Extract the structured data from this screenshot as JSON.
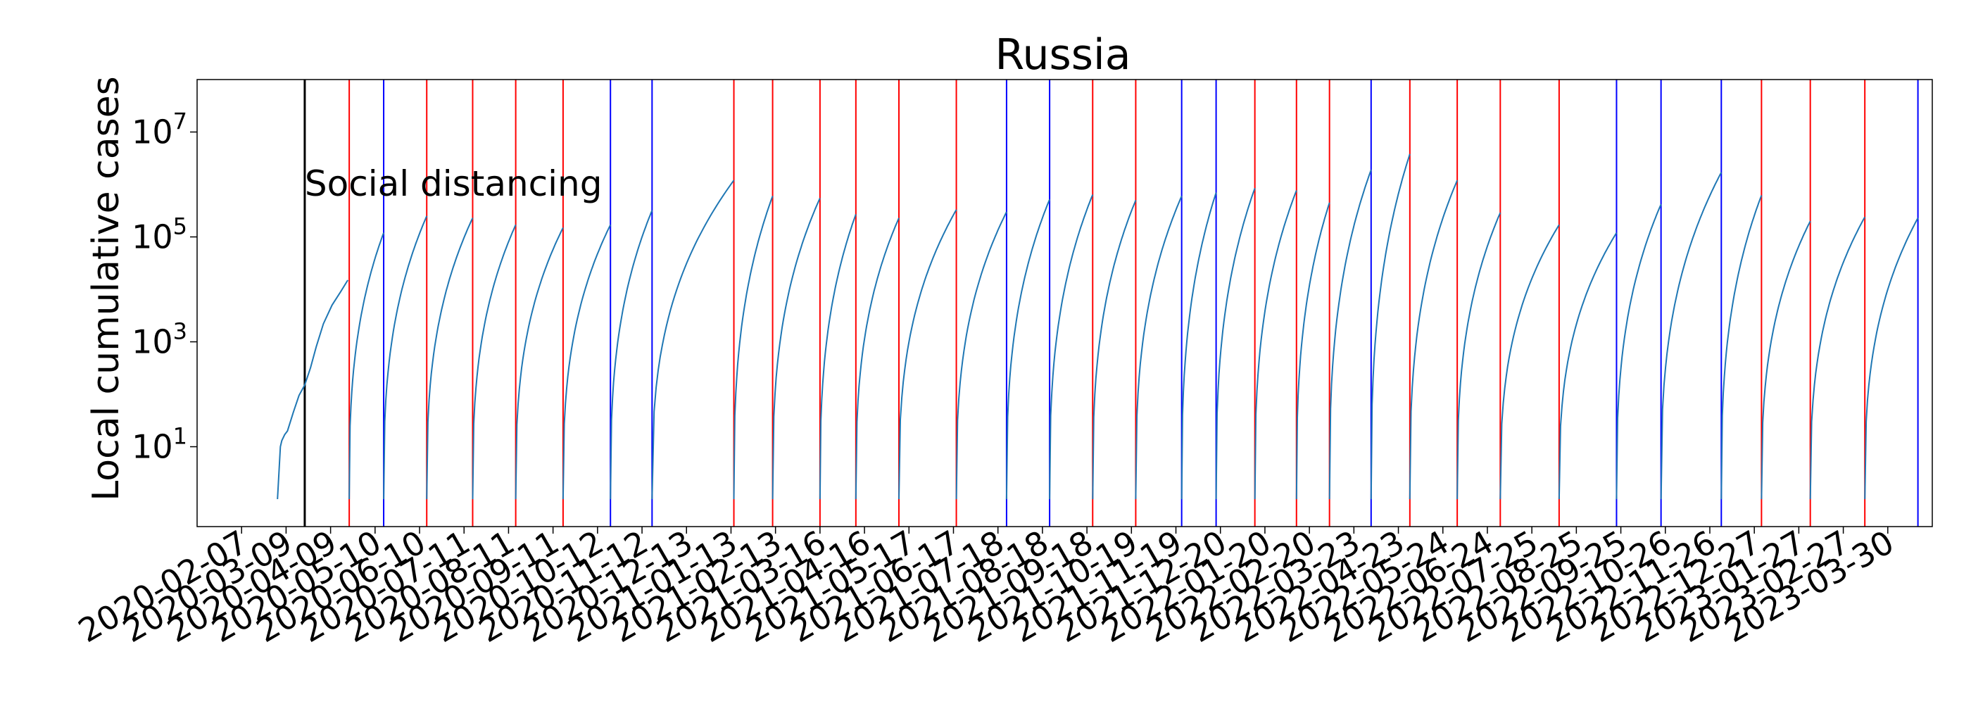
{
  "chart_data": {
    "type": "line",
    "title": "Russia",
    "xlabel": "",
    "ylabel": "Local cumulative cases",
    "y_scale": "log",
    "ylim": [
      0.3,
      100000000
    ],
    "y_ticks": [
      {
        "value": 10,
        "base": "10",
        "exp": "1"
      },
      {
        "value": 1000,
        "base": "10",
        "exp": "3"
      },
      {
        "value": 100000,
        "base": "10",
        "exp": "5"
      },
      {
        "value": 10000000,
        "base": "10",
        "exp": "7"
      }
    ],
    "xlim": [
      "2020-01-07",
      "2023-04-30"
    ],
    "x_tick_labels": [
      "2020-02-07",
      "2020-03-09",
      "2020-04-09",
      "2020-05-10",
      "2020-06-10",
      "2020-07-11",
      "2020-08-11",
      "2020-09-11",
      "2020-10-12",
      "2020-11-12",
      "2020-12-13",
      "2021-01-13",
      "2021-02-13",
      "2021-03-16",
      "2021-04-16",
      "2021-05-17",
      "2021-06-17",
      "2021-07-18",
      "2021-08-18",
      "2021-09-18",
      "2021-10-19",
      "2021-11-19",
      "2021-12-20",
      "2022-01-20",
      "2022-02-20",
      "2022-03-23",
      "2022-04-23",
      "2022-05-24",
      "2022-06-24",
      "2022-07-25",
      "2022-08-25",
      "2022-09-25",
      "2022-10-26",
      "2022-11-26",
      "2022-12-27",
      "2023-01-27",
      "2023-02-27",
      "2023-03-30"
    ],
    "grid": false,
    "series_color": "#1f77b4",
    "annotation": {
      "text": "Social distancing",
      "date": "2020-03-22",
      "color": "#000000"
    },
    "vlines": [
      {
        "date": "2020-04-22",
        "color": "#ff0000"
      },
      {
        "date": "2020-05-16",
        "color": "#0000ff"
      },
      {
        "date": "2020-06-15",
        "color": "#ff0000"
      },
      {
        "date": "2020-07-17",
        "color": "#ff0000"
      },
      {
        "date": "2020-08-16",
        "color": "#ff0000"
      },
      {
        "date": "2020-09-18",
        "color": "#ff0000"
      },
      {
        "date": "2020-10-21",
        "color": "#0000ff"
      },
      {
        "date": "2020-11-19",
        "color": "#0000ff"
      },
      {
        "date": "2021-01-15",
        "color": "#ff0000"
      },
      {
        "date": "2021-02-11",
        "color": "#ff0000"
      },
      {
        "date": "2021-03-16",
        "color": "#ff0000"
      },
      {
        "date": "2021-04-10",
        "color": "#ff0000"
      },
      {
        "date": "2021-05-10",
        "color": "#ff0000"
      },
      {
        "date": "2021-06-19",
        "color": "#ff0000"
      },
      {
        "date": "2021-07-24",
        "color": "#0000ff"
      },
      {
        "date": "2021-08-23",
        "color": "#0000ff"
      },
      {
        "date": "2021-09-22",
        "color": "#ff0000"
      },
      {
        "date": "2021-10-22",
        "color": "#ff0000"
      },
      {
        "date": "2021-11-23",
        "color": "#0000ff"
      },
      {
        "date": "2021-12-17",
        "color": "#0000ff"
      },
      {
        "date": "2022-01-13",
        "color": "#ff0000"
      },
      {
        "date": "2022-02-11",
        "color": "#ff0000"
      },
      {
        "date": "2022-03-06",
        "color": "#ff0000"
      },
      {
        "date": "2022-04-04",
        "color": "#0000ff"
      },
      {
        "date": "2022-05-01",
        "color": "#ff0000"
      },
      {
        "date": "2022-06-03",
        "color": "#ff0000"
      },
      {
        "date": "2022-07-03",
        "color": "#ff0000"
      },
      {
        "date": "2022-08-13",
        "color": "#ff0000"
      },
      {
        "date": "2022-09-22",
        "color": "#0000ff"
      },
      {
        "date": "2022-10-23",
        "color": "#0000ff"
      },
      {
        "date": "2022-12-04",
        "color": "#0000ff"
      },
      {
        "date": "2023-01-01",
        "color": "#ff0000"
      },
      {
        "date": "2023-02-04",
        "color": "#ff0000"
      },
      {
        "date": "2023-03-14",
        "color": "#ff0000"
      },
      {
        "date": "2023-04-20",
        "color": "#0000ff"
      }
    ],
    "initial_growth": [
      {
        "date": "2020-03-03",
        "cases": 1
      },
      {
        "date": "2020-03-05",
        "cases": 10
      },
      {
        "date": "2020-03-06",
        "cases": 13
      },
      {
        "date": "2020-03-08",
        "cases": 17
      },
      {
        "date": "2020-03-10",
        "cases": 20
      },
      {
        "date": "2020-03-14",
        "cases": 45
      },
      {
        "date": "2020-03-18",
        "cases": 95
      },
      {
        "date": "2020-03-22",
        "cases": 150
      },
      {
        "date": "2020-03-26",
        "cases": 320
      },
      {
        "date": "2020-03-30",
        "cases": 800
      },
      {
        "date": "2020-04-04",
        "cases": 2200
      },
      {
        "date": "2020-04-10",
        "cases": 5000
      },
      {
        "date": "2020-04-16",
        "cases": 9000
      },
      {
        "date": "2020-04-21",
        "cases": 15000
      }
    ],
    "segments": [
      {
        "start": "2020-04-22",
        "end": "2020-05-16",
        "peak": 120000
      },
      {
        "start": "2020-05-16",
        "end": "2020-06-15",
        "peak": 250000
      },
      {
        "start": "2020-06-15",
        "end": "2020-07-17",
        "peak": 230000
      },
      {
        "start": "2020-07-17",
        "end": "2020-08-16",
        "peak": 170000
      },
      {
        "start": "2020-08-16",
        "end": "2020-09-18",
        "peak": 150000
      },
      {
        "start": "2020-09-18",
        "end": "2020-10-21",
        "peak": 170000
      },
      {
        "start": "2020-10-21",
        "end": "2020-11-19",
        "peak": 320000
      },
      {
        "start": "2020-11-19",
        "end": "2021-01-15",
        "peak": 1200000
      },
      {
        "start": "2021-01-15",
        "end": "2021-02-11",
        "peak": 600000
      },
      {
        "start": "2021-02-11",
        "end": "2021-03-16",
        "peak": 550000
      },
      {
        "start": "2021-03-16",
        "end": "2021-04-10",
        "peak": 270000
      },
      {
        "start": "2021-04-10",
        "end": "2021-05-10",
        "peak": 230000
      },
      {
        "start": "2021-05-10",
        "end": "2021-06-19",
        "peak": 330000
      },
      {
        "start": "2021-06-19",
        "end": "2021-07-24",
        "peak": 300000
      },
      {
        "start": "2021-07-24",
        "end": "2021-08-23",
        "peak": 520000
      },
      {
        "start": "2021-08-23",
        "end": "2021-09-22",
        "peak": 640000
      },
      {
        "start": "2021-09-22",
        "end": "2021-10-22",
        "peak": 500000
      },
      {
        "start": "2021-10-22",
        "end": "2021-11-23",
        "peak": 600000
      },
      {
        "start": "2021-11-23",
        "end": "2021-12-17",
        "peak": 700000
      },
      {
        "start": "2021-12-17",
        "end": "2022-01-13",
        "peak": 850000
      },
      {
        "start": "2022-01-13",
        "end": "2022-02-11",
        "peak": 770000
      },
      {
        "start": "2022-02-11",
        "end": "2022-03-06",
        "peak": 450000
      },
      {
        "start": "2022-03-06",
        "end": "2022-04-04",
        "peak": 1900000
      },
      {
        "start": "2022-04-04",
        "end": "2022-05-01",
        "peak": 3800000
      },
      {
        "start": "2022-05-01",
        "end": "2022-06-03",
        "peak": 1200000
      },
      {
        "start": "2022-06-03",
        "end": "2022-07-03",
        "peak": 290000
      },
      {
        "start": "2022-07-03",
        "end": "2022-08-13",
        "peak": 170000
      },
      {
        "start": "2022-08-13",
        "end": "2022-09-22",
        "peak": 120000
      },
      {
        "start": "2022-09-22",
        "end": "2022-10-23",
        "peak": 420000
      },
      {
        "start": "2022-10-23",
        "end": "2022-12-04",
        "peak": 1700000
      },
      {
        "start": "2022-12-04",
        "end": "2023-01-01",
        "peak": 620000
      },
      {
        "start": "2023-01-01",
        "end": "2023-02-04",
        "peak": 200000
      },
      {
        "start": "2023-02-04",
        "end": "2023-03-14",
        "peak": 240000
      },
      {
        "start": "2023-03-14",
        "end": "2023-04-20",
        "peak": 230000
      }
    ]
  }
}
